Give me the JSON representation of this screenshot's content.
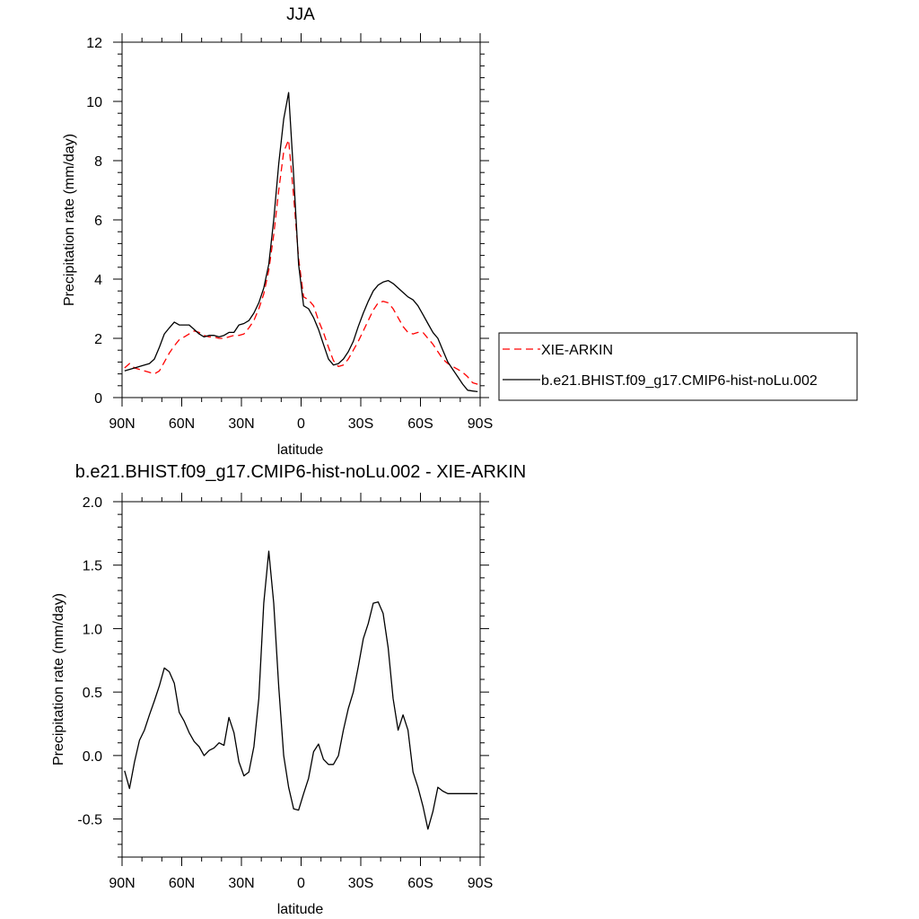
{
  "chart_data": [
    {
      "type": "line",
      "title": "JJA",
      "xlabel": "latitude",
      "ylabel": "Precipitation rate (mm/day)",
      "xlim": [
        90,
        -90
      ],
      "ylim": [
        0,
        12
      ],
      "x_ticks": [
        90,
        60,
        30,
        0,
        -30,
        -60,
        -90
      ],
      "x_tick_labels": [
        "90N",
        "60N",
        "30N",
        "0",
        "30S",
        "60S",
        "90S"
      ],
      "y_ticks": [
        0,
        2,
        4,
        6,
        8,
        10,
        12
      ],
      "y_tick_labels": [
        "0",
        "2",
        "4",
        "6",
        "8",
        "10",
        "12"
      ],
      "legend_position": "right",
      "series": [
        {
          "name": "XIE-ARKIN",
          "color": "#ff0000",
          "dashed": true,
          "x": [
            88.75,
            86.25,
            83.75,
            81.25,
            78.75,
            76.25,
            73.75,
            71.25,
            68.75,
            66.25,
            63.75,
            61.25,
            58.75,
            56.25,
            53.75,
            51.25,
            48.75,
            46.25,
            43.75,
            41.25,
            38.75,
            36.25,
            33.75,
            31.25,
            28.75,
            26.25,
            23.75,
            21.25,
            18.75,
            16.25,
            13.75,
            11.25,
            8.75,
            6.25,
            3.75,
            1.25,
            -1.25,
            -3.75,
            -6.25,
            -8.75,
            -11.25,
            -13.75,
            -16.25,
            -18.75,
            -21.25,
            -23.75,
            -26.25,
            -28.75,
            -31.25,
            -33.75,
            -36.25,
            -38.75,
            -41.25,
            -43.75,
            -46.25,
            -48.75,
            -51.25,
            -53.75,
            -56.25,
            -58.75,
            -61.25,
            -63.75,
            -66.25,
            -68.75,
            -71.25,
            -73.75,
            -76.25,
            -78.75,
            -81.25,
            -83.75,
            -86.25,
            -88.75
          ],
          "y": [
            1.0,
            1.15,
            1.0,
            0.95,
            0.9,
            0.85,
            0.8,
            0.9,
            1.2,
            1.5,
            1.75,
            1.95,
            2.05,
            2.15,
            2.25,
            2.2,
            2.1,
            2.05,
            2.05,
            2.0,
            2.0,
            2.05,
            2.1,
            2.1,
            2.15,
            2.35,
            2.6,
            3.0,
            3.5,
            4.3,
            5.5,
            7.0,
            8.3,
            8.7,
            6.8,
            4.7,
            3.4,
            3.3,
            3.1,
            2.6,
            2.2,
            1.7,
            1.25,
            1.05,
            1.1,
            1.3,
            1.6,
            1.9,
            2.25,
            2.6,
            2.95,
            3.2,
            3.25,
            3.2,
            3.0,
            2.7,
            2.4,
            2.2,
            2.15,
            2.2,
            2.2,
            2.0,
            1.8,
            1.55,
            1.3,
            1.15,
            1.05,
            0.95,
            0.85,
            0.7,
            0.5,
            0.45
          ]
        },
        {
          "name": "b.e21.BHIST.f09_g17.CMIP6-hist-noLu.002",
          "color": "#000000",
          "dashed": false,
          "x": [
            88.75,
            86.25,
            83.75,
            81.25,
            78.75,
            76.25,
            73.75,
            71.25,
            68.75,
            66.25,
            63.75,
            61.25,
            58.75,
            56.25,
            53.75,
            51.25,
            48.75,
            46.25,
            43.75,
            41.25,
            38.75,
            36.25,
            33.75,
            31.25,
            28.75,
            26.25,
            23.75,
            21.25,
            18.75,
            16.25,
            13.75,
            11.25,
            8.75,
            6.25,
            3.75,
            1.25,
            -1.25,
            -3.75,
            -6.25,
            -8.75,
            -11.25,
            -13.75,
            -16.25,
            -18.75,
            -21.25,
            -23.75,
            -26.25,
            -28.75,
            -31.25,
            -33.75,
            -36.25,
            -38.75,
            -41.25,
            -43.75,
            -46.25,
            -48.75,
            -51.25,
            -53.75,
            -56.25,
            -58.75,
            -61.25,
            -63.75,
            -66.25,
            -68.75,
            -71.25,
            -73.75,
            -76.25,
            -78.75,
            -81.25,
            -83.75,
            -86.25,
            -88.75
          ],
          "y": [
            0.9,
            0.95,
            1.0,
            1.05,
            1.1,
            1.15,
            1.3,
            1.7,
            2.15,
            2.35,
            2.55,
            2.45,
            2.45,
            2.45,
            2.3,
            2.15,
            2.05,
            2.1,
            2.1,
            2.05,
            2.1,
            2.2,
            2.2,
            2.45,
            2.5,
            2.6,
            2.85,
            3.2,
            3.7,
            4.5,
            6.0,
            7.9,
            9.4,
            10.3,
            7.5,
            4.5,
            3.1,
            3.0,
            2.7,
            2.3,
            1.8,
            1.3,
            1.1,
            1.15,
            1.3,
            1.55,
            1.9,
            2.4,
            2.85,
            3.25,
            3.6,
            3.8,
            3.9,
            3.95,
            3.85,
            3.7,
            3.55,
            3.4,
            3.3,
            3.1,
            2.8,
            2.5,
            2.2,
            2.0,
            1.6,
            1.2,
            0.95,
            0.7,
            0.45,
            0.25,
            0.22,
            0.2
          ]
        }
      ]
    },
    {
      "type": "line",
      "title": "b.e21.BHIST.f09_g17.CMIP6-hist-noLu.002 - XIE-ARKIN",
      "xlabel": "latitude",
      "ylabel": "Precipitation rate (mm/day)",
      "xlim": [
        90,
        -90
      ],
      "ylim": [
        -0.8,
        2.0
      ],
      "x_ticks": [
        90,
        60,
        30,
        0,
        -30,
        -60,
        -90
      ],
      "x_tick_labels": [
        "90N",
        "60N",
        "30N",
        "0",
        "30S",
        "60S",
        "90S"
      ],
      "y_ticks": [
        -0.5,
        0.0,
        0.5,
        1.0,
        1.5,
        2.0
      ],
      "y_tick_labels": [
        "-0.5",
        "0.0",
        "0.5",
        "1.0",
        "1.5",
        "2.0"
      ],
      "series": [
        {
          "color": "#000000",
          "dashed": false,
          "x": [
            88.75,
            86.25,
            83.75,
            81.25,
            78.75,
            76.25,
            73.75,
            71.25,
            68.75,
            66.25,
            63.75,
            61.25,
            58.75,
            56.25,
            53.75,
            51.25,
            48.75,
            46.25,
            43.75,
            41.25,
            38.75,
            36.25,
            33.75,
            31.25,
            28.75,
            26.25,
            23.75,
            21.25,
            18.75,
            16.25,
            13.75,
            11.25,
            8.75,
            6.25,
            3.75,
            1.25,
            -1.25,
            -3.75,
            -6.25,
            -8.75,
            -11.25,
            -13.75,
            -16.25,
            -18.75,
            -21.25,
            -23.75,
            -26.25,
            -28.75,
            -31.25,
            -33.75,
            -36.25,
            -38.75,
            -41.25,
            -43.75,
            -46.25,
            -48.75,
            -51.25,
            -53.75,
            -56.25,
            -58.75,
            -61.25,
            -63.75,
            -66.25,
            -68.75,
            -71.25,
            -73.75,
            -76.25,
            -78.75,
            -81.25,
            -83.75,
            -86.25,
            -88.75
          ],
          "y": [
            -0.12,
            -0.26,
            -0.05,
            0.12,
            0.2,
            0.32,
            0.43,
            0.55,
            0.69,
            0.66,
            0.57,
            0.34,
            0.27,
            0.18,
            0.11,
            0.07,
            0.0,
            0.04,
            0.06,
            0.1,
            0.08,
            0.3,
            0.18,
            -0.05,
            -0.16,
            -0.13,
            0.07,
            0.45,
            1.2,
            1.61,
            1.2,
            0.54,
            0.0,
            -0.25,
            -0.42,
            -0.43,
            -0.3,
            -0.18,
            0.03,
            0.09,
            -0.03,
            -0.07,
            -0.07,
            0.0,
            0.2,
            0.37,
            0.5,
            0.7,
            0.92,
            1.04,
            1.2,
            1.21,
            1.12,
            0.85,
            0.45,
            0.2,
            0.32,
            0.2,
            -0.13,
            -0.25,
            -0.4,
            -0.58,
            -0.44,
            -0.25,
            -0.28,
            -0.3,
            -0.3,
            -0.3,
            -0.3,
            -0.3,
            -0.3,
            -0.3
          ]
        }
      ]
    }
  ]
}
